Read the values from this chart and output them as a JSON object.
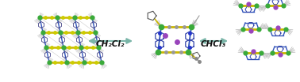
{
  "arrow1_text": "CH₂Cl₂",
  "arrow2_text": "CHCl₃",
  "arrow_color": "#7ab5a8",
  "arrow_fontsize": 7.5,
  "bg_color": "#ffffff",
  "fig_width": 3.78,
  "fig_height": 1.04,
  "dpi": 100,
  "font_weight": "bold",
  "green": "#3aaa3a",
  "yellow": "#ccb800",
  "blue": "#3355bb",
  "gray": "#999999",
  "purple": "#9944bb",
  "darkgray": "#555555"
}
